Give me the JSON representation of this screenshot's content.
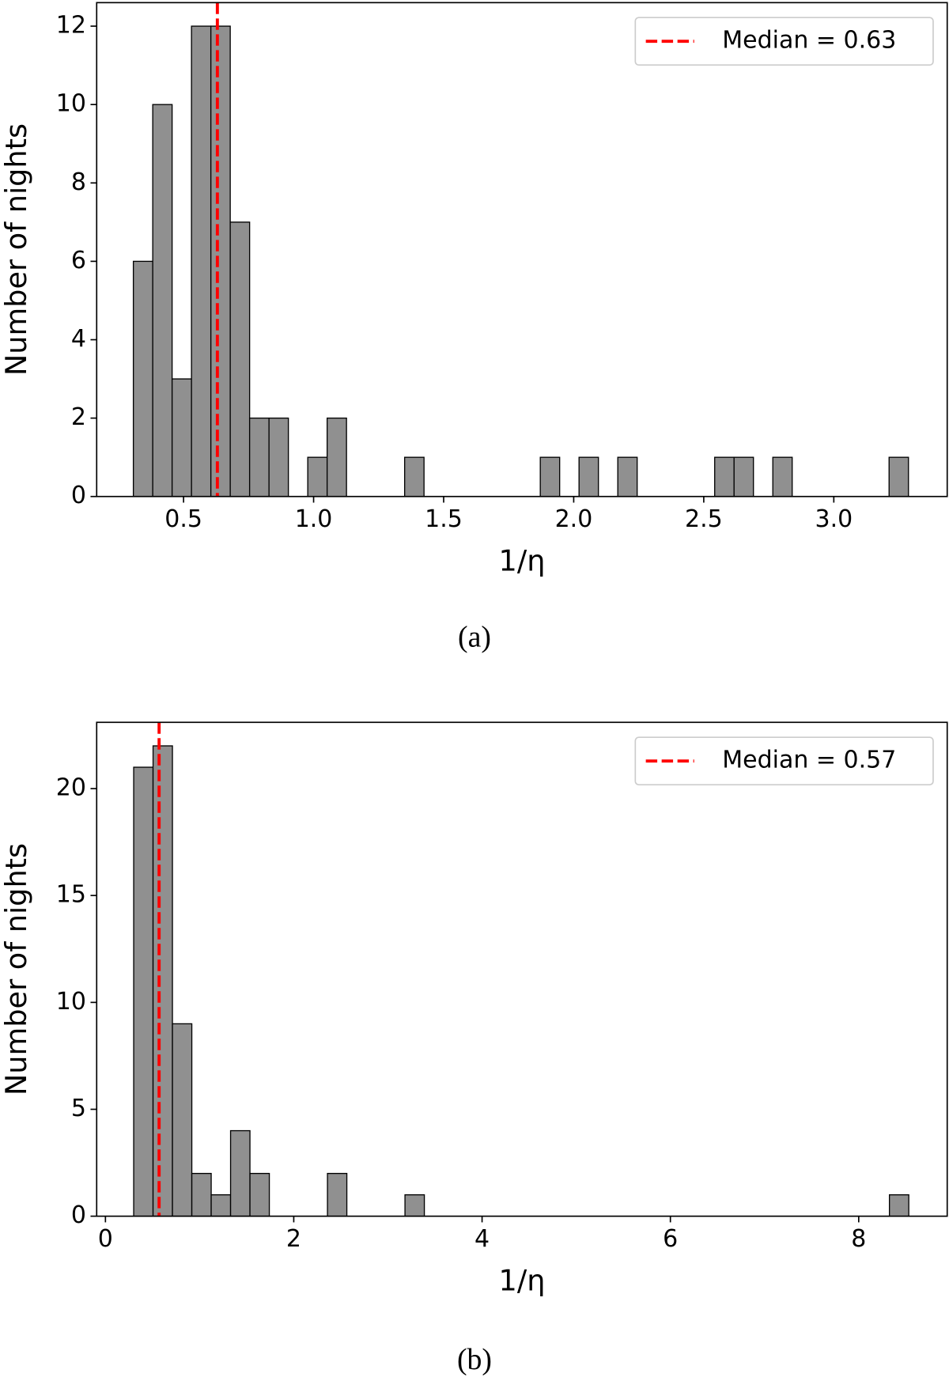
{
  "chart_data": [
    {
      "type": "histogram",
      "caption": "(a)",
      "xlabel": "1/η",
      "ylabel": "Number of nights",
      "bins": [
        0.307,
        0.3815,
        0.456,
        0.5305,
        0.605,
        0.6795,
        0.754,
        0.8285,
        0.903,
        0.9775,
        1.052,
        1.1265,
        1.201,
        1.2755,
        1.35,
        1.4245,
        1.499,
        1.5735,
        1.648,
        1.7225,
        1.797,
        1.8715,
        1.946,
        2.0205,
        2.095,
        2.1695,
        2.244,
        2.3185,
        2.393,
        2.4675,
        2.542,
        2.6165,
        2.691,
        2.7655,
        2.84,
        2.9145,
        2.989,
        3.0635,
        3.138,
        3.2125,
        3.287
      ],
      "values": [
        6,
        10,
        3,
        12,
        12,
        7,
        2,
        2,
        0,
        1,
        2,
        0,
        0,
        0,
        1,
        0,
        0,
        0,
        0,
        0,
        0,
        1,
        0,
        1,
        0,
        1,
        0,
        0,
        0,
        0,
        1,
        1,
        0,
        1,
        0,
        0,
        0,
        0,
        0,
        1
      ],
      "color": "#909090",
      "xlim": [
        0.166,
        3.436
      ],
      "ylim": [
        0,
        12.6
      ],
      "xticks": [
        0.5,
        {
          "value": 1.0,
          "label": "1.0"
        },
        1.5,
        {
          "value": 2.0,
          "label": "2.0"
        },
        2.5,
        {
          "value": 3.0,
          "label": "3.0"
        }
      ],
      "yticks": [
        0,
        2,
        4,
        6,
        8,
        10,
        12
      ],
      "median": {
        "name": "Median = 0.63",
        "value": 0.63,
        "color": "#ff0000"
      },
      "legend": "upper right"
    },
    {
      "type": "histogram",
      "caption": "(b)",
      "xlabel": "1/η",
      "ylabel": "Number of nights",
      "bins": [
        0.3,
        0.5058,
        0.7116,
        0.9174,
        1.1232,
        1.329,
        1.5348,
        1.7406,
        1.9464,
        2.1522,
        2.358,
        2.5638,
        2.7696,
        2.9754,
        3.1812,
        3.387,
        3.5928,
        3.7986,
        4.0044,
        4.2102,
        4.416,
        4.6218,
        4.8276,
        5.0334,
        5.2392,
        5.445,
        5.6508,
        5.8566,
        6.0624,
        6.2682,
        6.474,
        6.6798,
        6.8856,
        7.0914,
        7.2972,
        7.503,
        7.7088,
        7.9146,
        8.1204,
        8.3262,
        8.532
      ],
      "values": [
        21,
        22,
        9,
        2,
        1,
        4,
        2,
        0,
        0,
        0,
        2,
        0,
        0,
        0,
        1,
        0,
        0,
        0,
        0,
        0,
        0,
        0,
        0,
        0,
        0,
        0,
        0,
        0,
        0,
        0,
        0,
        0,
        0,
        0,
        0,
        0,
        0,
        0,
        0,
        1
      ],
      "color": "#909090",
      "xlim": [
        -0.093,
        8.94
      ],
      "ylim": [
        0,
        23.1
      ],
      "xticks": [
        0,
        2,
        4,
        6,
        8
      ],
      "yticks": [
        0,
        5,
        10,
        15,
        20
      ],
      "median": {
        "name": "Median = 0.57",
        "value": 0.57,
        "color": "#ff0000"
      },
      "legend": "upper right"
    }
  ]
}
